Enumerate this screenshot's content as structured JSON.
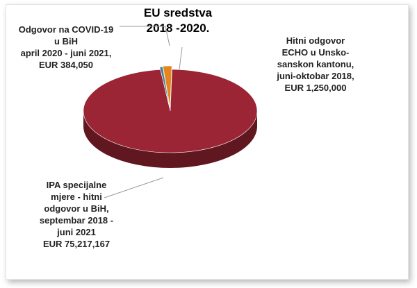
{
  "chart_data": {
    "type": "pie",
    "title": [
      "EU sredstva",
      "2018 -2020."
    ],
    "slices": [
      {
        "label_lines": [
          "IPA specijalne",
          "mjere - hitni",
          "odgovor u BiH,",
          "septembar 2018 -",
          "juni 2021",
          "EUR 75,217,167"
        ],
        "value": 75217167,
        "color": "#9b2534"
      },
      {
        "label_lines": [
          "Odgovor na COVID-19",
          "u BiH",
          "april 2020 - juni 2021,",
          "EUR 384,050"
        ],
        "value": 384050,
        "color": "#3c7f9a"
      },
      {
        "label_lines": [
          "Hitni odgovor",
          "ECHO u Unsko-",
          "sanskon kantonu,",
          "juni-oktobar 2018,",
          "EUR 1,250,000"
        ],
        "value": 1250000,
        "color": "#e4851d"
      }
    ],
    "legend": "none",
    "style": "3d-exploded"
  }
}
